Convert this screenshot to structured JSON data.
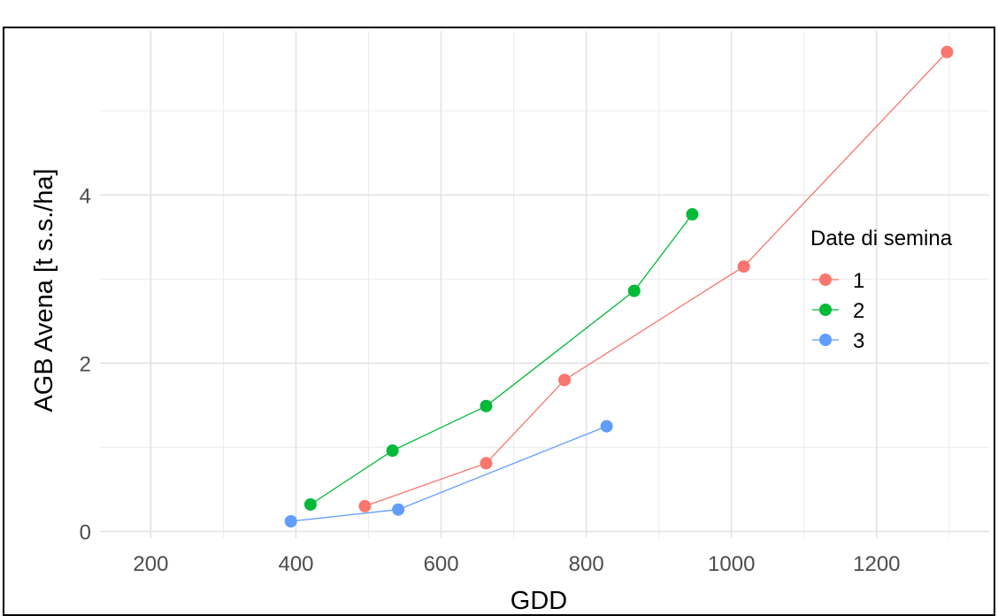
{
  "chart_data": {
    "type": "line",
    "xlabel": "GDD",
    "ylabel": "AGB Avena [t s.s./ha]",
    "xlim": [
      130,
      1355
    ],
    "ylim": [
      -0.08,
      5.95
    ],
    "x_ticks": [
      200,
      400,
      600,
      800,
      1000,
      1200
    ],
    "x_tick_labels": [
      "200",
      "400",
      "600",
      "800",
      "1000",
      "1200"
    ],
    "y_ticks": [
      0,
      2,
      4
    ],
    "y_tick_labels": [
      "0",
      "2",
      "4"
    ],
    "grid": true,
    "legend": {
      "title": "Date di semina",
      "placement": "right",
      "entries": [
        "1",
        "2",
        "3"
      ]
    },
    "series": [
      {
        "name": "1",
        "color": "#F8766D",
        "points": [
          [
            495,
            0.3
          ],
          [
            662,
            0.81
          ],
          [
            770,
            1.8
          ],
          [
            1017,
            3.15
          ],
          [
            1297,
            5.7
          ]
        ]
      },
      {
        "name": "2",
        "color": "#00BA38",
        "points": [
          [
            420,
            0.32
          ],
          [
            533,
            0.96
          ],
          [
            662,
            1.49
          ],
          [
            866,
            2.86
          ],
          [
            946,
            3.77
          ]
        ]
      },
      {
        "name": "3",
        "color": "#619CFF",
        "points": [
          [
            393,
            0.12
          ],
          [
            541,
            0.26
          ],
          [
            828,
            1.25
          ]
        ]
      }
    ]
  }
}
